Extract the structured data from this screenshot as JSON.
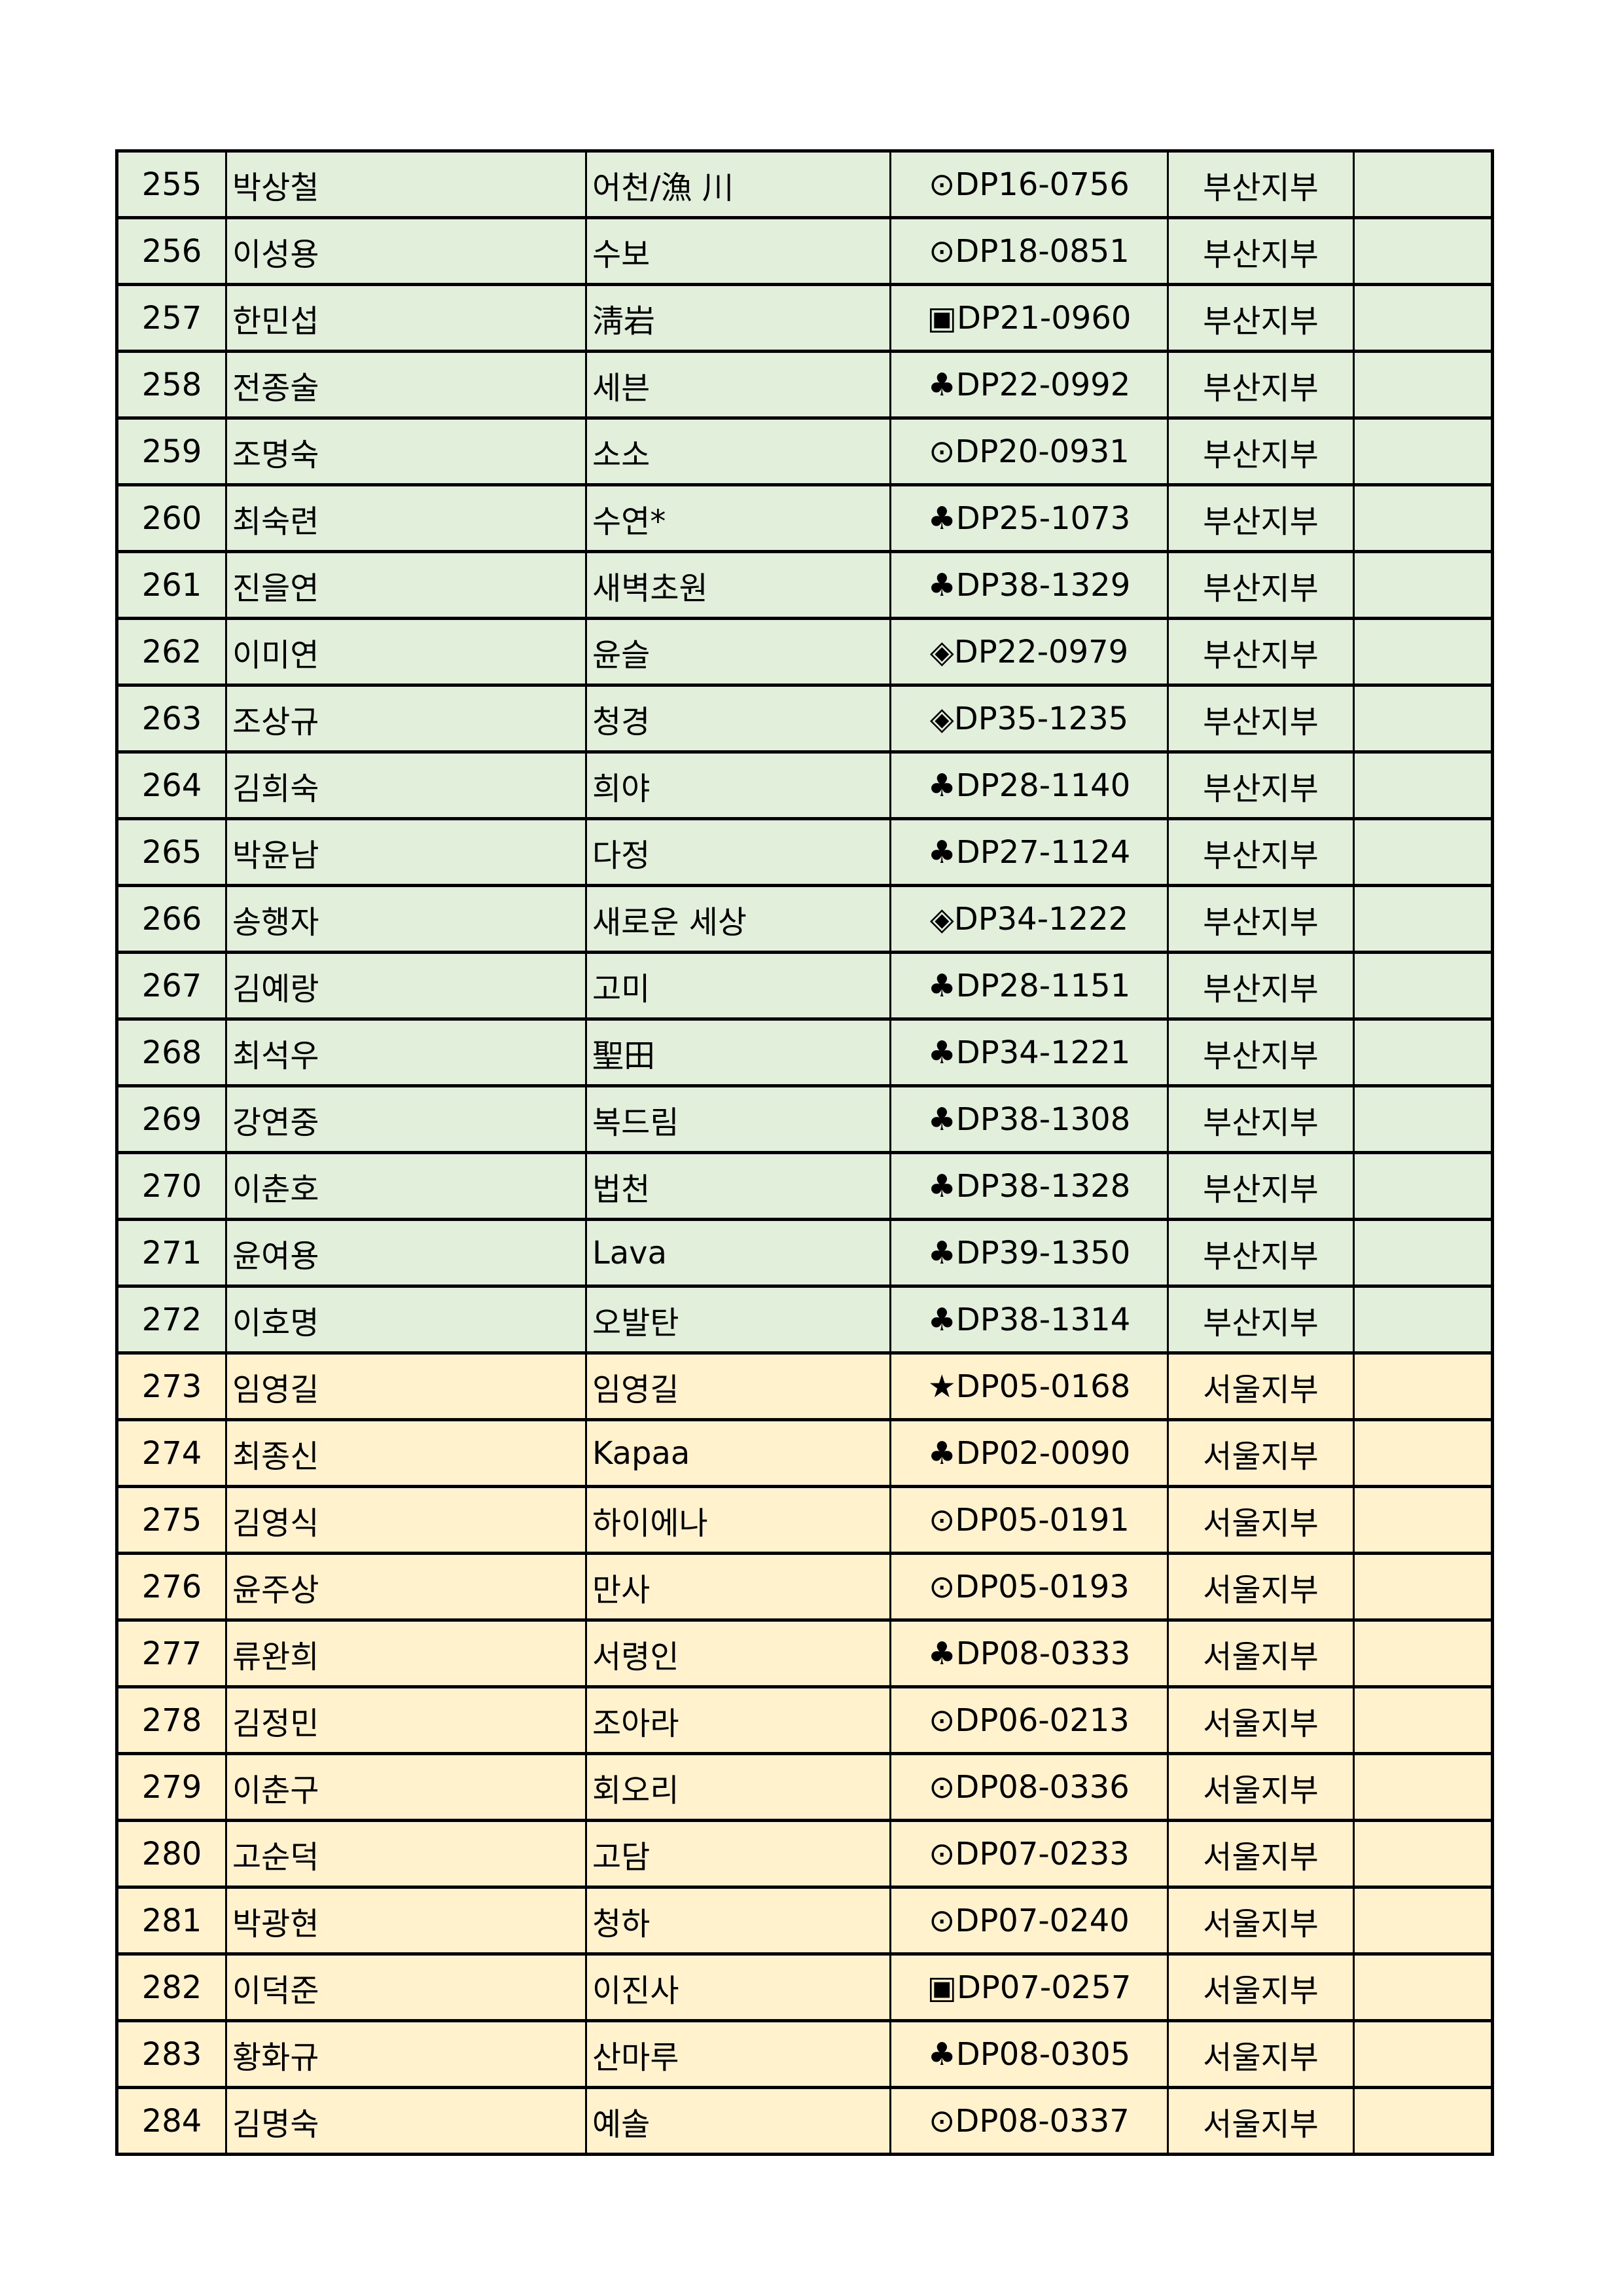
{
  "colors": {
    "busan_row": "#e2efda",
    "seoul_row": "#fff2cc"
  },
  "rows": [
    {
      "no": "255",
      "name": "박상철",
      "nickname": "어천/漁 川",
      "code": "⊙DP16-0756",
      "branch": "부산지부",
      "note": ""
    },
    {
      "no": "256",
      "name": "이성용",
      "nickname": "수보",
      "code": "⊙DP18-0851",
      "branch": "부산지부",
      "note": ""
    },
    {
      "no": "257",
      "name": "한민섭",
      "nickname": "淸岩",
      "code": "▣DP21-0960",
      "branch": "부산지부",
      "note": ""
    },
    {
      "no": "258",
      "name": "전종술",
      "nickname": "세븐",
      "code": "♣DP22-0992",
      "branch": "부산지부",
      "note": ""
    },
    {
      "no": "259",
      "name": "조명숙",
      "nickname": "소소",
      "code": "⊙DP20-0931",
      "branch": "부산지부",
      "note": ""
    },
    {
      "no": "260",
      "name": "최숙련",
      "nickname": "수연*",
      "code": "♣DP25-1073",
      "branch": "부산지부",
      "note": ""
    },
    {
      "no": "261",
      "name": "진을연",
      "nickname": "새벽초원",
      "code": "♣DP38-1329",
      "branch": "부산지부",
      "note": ""
    },
    {
      "no": "262",
      "name": "이미연",
      "nickname": "윤슬",
      "code": "◈DP22-0979",
      "branch": "부산지부",
      "note": ""
    },
    {
      "no": "263",
      "name": "조상규",
      "nickname": "청경",
      "code": "◈DP35-1235",
      "branch": "부산지부",
      "note": ""
    },
    {
      "no": "264",
      "name": "김희숙",
      "nickname": "희야",
      "code": "♣DP28-1140",
      "branch": "부산지부",
      "note": ""
    },
    {
      "no": "265",
      "name": "박윤남",
      "nickname": "다정",
      "code": "♣DP27-1124",
      "branch": "부산지부",
      "note": ""
    },
    {
      "no": "266",
      "name": "송행자",
      "nickname": "새로운 세상",
      "code": "◈DP34-1222",
      "branch": "부산지부",
      "note": ""
    },
    {
      "no": "267",
      "name": "김예랑",
      "nickname": "고미",
      "code": "♣DP28-1151",
      "branch": "부산지부",
      "note": ""
    },
    {
      "no": "268",
      "name": "최석우",
      "nickname": "聖田",
      "code": "♣DP34-1221",
      "branch": "부산지부",
      "note": ""
    },
    {
      "no": "269",
      "name": "강연중",
      "nickname": "복드림",
      "code": "♣DP38-1308",
      "branch": "부산지부",
      "note": ""
    },
    {
      "no": "270",
      "name": "이춘호",
      "nickname": "법천",
      "code": "♣DP38-1328",
      "branch": "부산지부",
      "note": ""
    },
    {
      "no": "271",
      "name": "윤여용",
      "nickname": "Lava",
      "code": "♣DP39-1350",
      "branch": "부산지부",
      "note": ""
    },
    {
      "no": "272",
      "name": "이호명",
      "nickname": "오발탄",
      "code": "♣DP38-1314",
      "branch": "부산지부",
      "note": ""
    },
    {
      "no": "273",
      "name": "임영길",
      "nickname": "임영길",
      "code": "★DP05-0168",
      "branch": "서울지부",
      "note": ""
    },
    {
      "no": "274",
      "name": "최종신",
      "nickname": "Kapaa",
      "code": "♣DP02-0090",
      "branch": "서울지부",
      "note": ""
    },
    {
      "no": "275",
      "name": "김영식",
      "nickname": "하이에나",
      "code": "⊙DP05-0191",
      "branch": "서울지부",
      "note": ""
    },
    {
      "no": "276",
      "name": "윤주상",
      "nickname": "만사",
      "code": "⊙DP05-0193",
      "branch": "서울지부",
      "note": ""
    },
    {
      "no": "277",
      "name": "류완희",
      "nickname": "서령인",
      "code": "♣DP08-0333",
      "branch": "서울지부",
      "note": ""
    },
    {
      "no": "278",
      "name": "김정민",
      "nickname": "조아라",
      "code": "⊙DP06-0213",
      "branch": "서울지부",
      "note": ""
    },
    {
      "no": "279",
      "name": "이춘구",
      "nickname": "회오리",
      "code": "⊙DP08-0336",
      "branch": "서울지부",
      "note": ""
    },
    {
      "no": "280",
      "name": "고순덕",
      "nickname": "고담",
      "code": "⊙DP07-0233",
      "branch": "서울지부",
      "note": ""
    },
    {
      "no": "281",
      "name": "박광현",
      "nickname": "청하",
      "code": "⊙DP07-0240",
      "branch": "서울지부",
      "note": ""
    },
    {
      "no": "282",
      "name": "이덕준",
      "nickname": "이진사",
      "code": "▣DP07-0257",
      "branch": "서울지부",
      "note": ""
    },
    {
      "no": "283",
      "name": "황화규",
      "nickname": "산마루",
      "code": "♣DP08-0305",
      "branch": "서울지부",
      "note": ""
    },
    {
      "no": "284",
      "name": "김명숙",
      "nickname": "예솔",
      "code": "⊙DP08-0337",
      "branch": "서울지부",
      "note": ""
    }
  ]
}
